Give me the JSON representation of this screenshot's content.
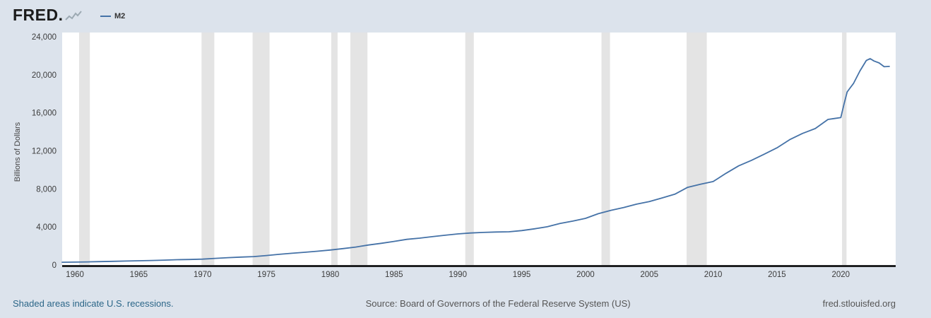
{
  "header": {
    "logo_text": "FRED",
    "logo_mark": ".",
    "legend": {
      "series_label": "M2"
    }
  },
  "chart_data": {
    "type": "line",
    "title": "",
    "xlabel": "",
    "ylabel": "Billions of Dollars",
    "xlim": [
      1959,
      2024.3
    ],
    "ylim": [
      0,
      24000
    ],
    "y_ticks": [
      0,
      4000,
      8000,
      12000,
      16000,
      20000,
      24000
    ],
    "x_ticks": [
      1960,
      1965,
      1970,
      1975,
      1980,
      1985,
      1990,
      1995,
      2000,
      2005,
      2010,
      2015,
      2020
    ],
    "grid": "off",
    "legend_position": "top-left",
    "line_color": "#4572a7",
    "recession_color": "#e4e4e4",
    "recessions": [
      [
        1960.33,
        1961.17
      ],
      [
        1969.92,
        1970.92
      ],
      [
        1973.92,
        1975.25
      ],
      [
        1980.08,
        1980.58
      ],
      [
        1981.58,
        1982.92
      ],
      [
        1990.58,
        1991.25
      ],
      [
        2001.25,
        2001.92
      ],
      [
        2007.92,
        2009.5
      ],
      [
        2020.1,
        2020.45
      ]
    ],
    "series": [
      {
        "name": "M2",
        "x": [
          1959,
          1960,
          1961,
          1962,
          1963,
          1964,
          1965,
          1966,
          1967,
          1968,
          1969,
          1970,
          1971,
          1972,
          1973,
          1974,
          1975,
          1976,
          1977,
          1978,
          1979,
          1980,
          1981,
          1982,
          1983,
          1984,
          1985,
          1986,
          1987,
          1988,
          1989,
          1990,
          1991,
          1992,
          1993,
          1994,
          1995,
          1996,
          1997,
          1998,
          1999,
          2000,
          2001,
          2002,
          2003,
          2004,
          2005,
          2006,
          2007,
          2008,
          2009,
          2010,
          2011,
          2012,
          2013,
          2014,
          2015,
          2016,
          2017,
          2018,
          2019,
          2019.5,
          2020,
          2020.25,
          2020.5,
          2020.75,
          2021,
          2021.5,
          2022,
          2022.3,
          2022.6,
          2023,
          2023.4,
          2023.8
        ],
        "values": [
          287,
          304,
          329,
          355,
          384,
          415,
          448,
          476,
          514,
          555,
          583,
          619,
          698,
          776,
          832,
          887,
          992,
          1122,
          1237,
          1340,
          1447,
          1572,
          1725,
          1884,
          2101,
          2280,
          2481,
          2700,
          2822,
          2978,
          3131,
          3266,
          3364,
          3422,
          3472,
          3490,
          3620,
          3801,
          4020,
          4358,
          4617,
          4905,
          5395,
          5749,
          6046,
          6397,
          6663,
          7048,
          7447,
          8166,
          8482,
          8778,
          9640,
          10427,
          11003,
          11652,
          12316,
          13180,
          13832,
          14349,
          15307,
          15400,
          15500,
          16900,
          18200,
          18650,
          19100,
          20400,
          21500,
          21700,
          21450,
          21250,
          20850,
          20880
        ]
      }
    ]
  },
  "footer": {
    "recession_note": "Shaded areas indicate U.S. recessions.",
    "source": "Source: Board of Governors of the Federal Reserve System (US)",
    "site": "fred.stlouisfed.org"
  }
}
